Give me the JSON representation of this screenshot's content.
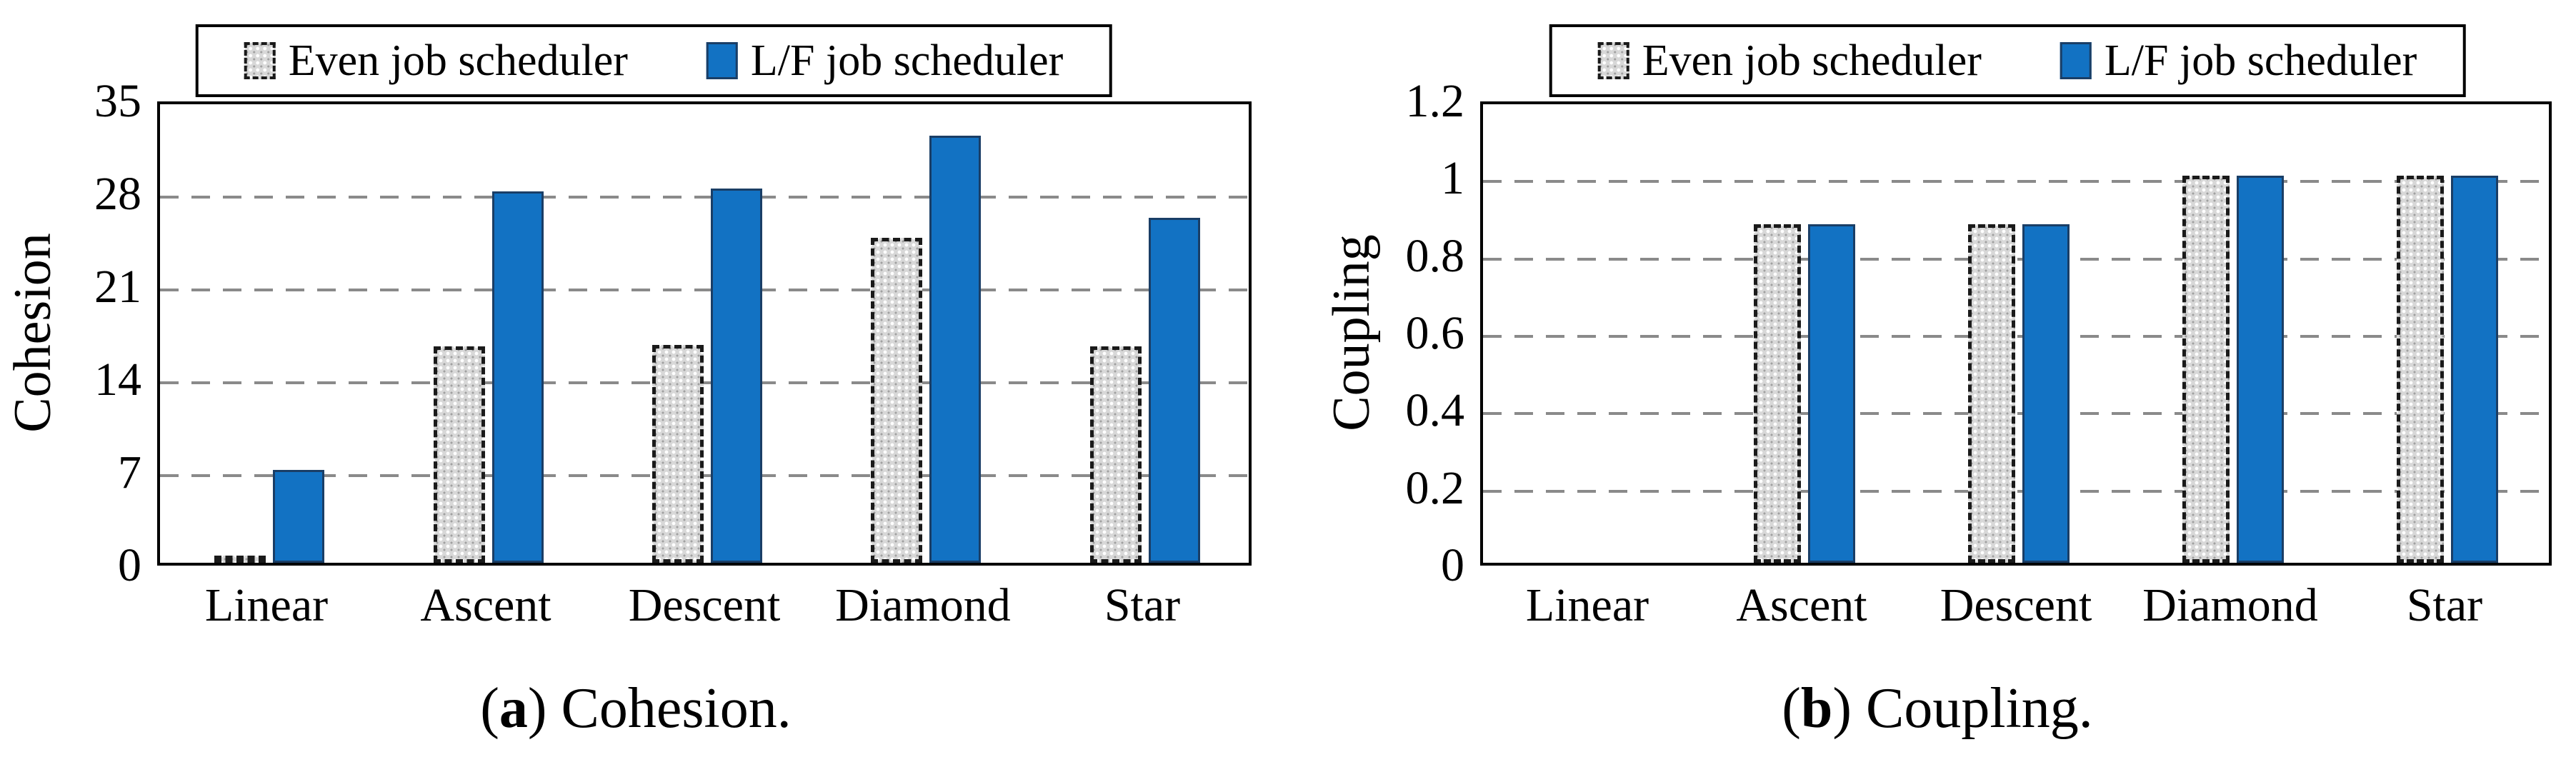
{
  "figure": {
    "background": "#ffffff"
  },
  "colors": {
    "even_fill": "#d8d8d8",
    "even_border": "#1a1a1a",
    "lf_fill": "#1272c3",
    "lf_border": "#1a3e66",
    "gridline": "#8a8a8a",
    "axis": "#000000",
    "text": "#000000"
  },
  "chart_data": [
    {
      "type": "bar",
      "title": "(a) Cohesion.",
      "caption_parts": {
        "pre": "(",
        "letter": "a",
        "post": ") Cohesion."
      },
      "ylabel": "Cohesion",
      "xlabel": "",
      "categories": [
        "Linear",
        "Ascent",
        "Descent",
        "Diamond",
        "Star"
      ],
      "series": [
        {
          "name": "Even job scheduler",
          "key": "even",
          "values": [
            0.2,
            16.3,
            16.4,
            24.5,
            16.3
          ]
        },
        {
          "name": "L/F job scheduler",
          "key": "lf",
          "values": [
            7,
            28,
            28.2,
            32.2,
            26
          ]
        }
      ],
      "ylim": [
        0,
        35
      ],
      "yticks": [
        0,
        7,
        14,
        21,
        28,
        35
      ],
      "ytick_labels": [
        "0",
        "7",
        "14",
        "21",
        "28",
        "35"
      ],
      "grid": true,
      "legend_position": "top-center"
    },
    {
      "type": "bar",
      "title": "(b) Coupling.",
      "caption_parts": {
        "pre": "(",
        "letter": "b",
        "post": ") Coupling."
      },
      "ylabel": "Coupling",
      "xlabel": "",
      "categories": [
        "Linear",
        "Ascent",
        "Descent",
        "Diamond",
        "Star"
      ],
      "series": [
        {
          "name": "Even job scheduler",
          "key": "even",
          "values": [
            0,
            0.875,
            0.875,
            1,
            1
          ]
        },
        {
          "name": "L/F job scheduler",
          "key": "lf",
          "values": [
            0,
            0.875,
            0.875,
            1,
            1
          ]
        }
      ],
      "ylim": [
        0,
        1.2
      ],
      "yticks": [
        0,
        0.2,
        0.4,
        0.6,
        0.8,
        1,
        1.2
      ],
      "ytick_labels": [
        "0",
        "0.2",
        "0.4",
        "0.6",
        "0.8",
        "1",
        "1.2"
      ],
      "grid": true,
      "legend_position": "top-center"
    }
  ]
}
